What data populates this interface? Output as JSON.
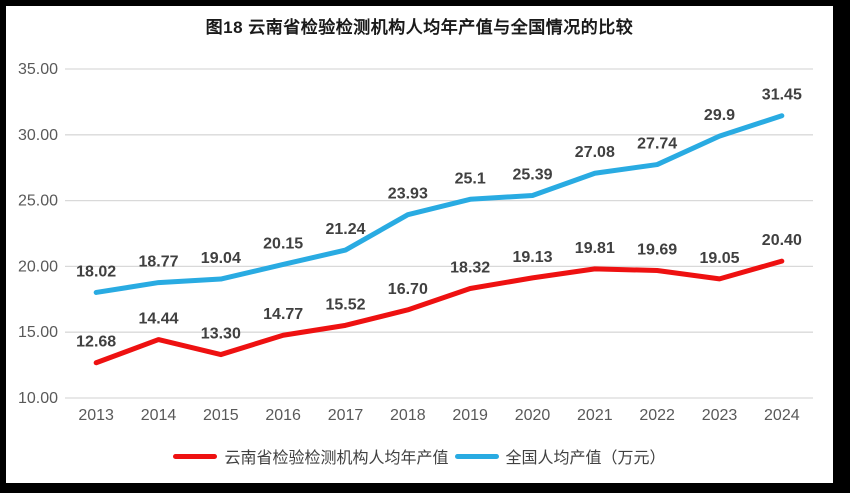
{
  "chart_data": {
    "type": "line",
    "title": "图18 云南省检验检测机构人均年产值与全国情况的比较",
    "categories": [
      "2013",
      "2014",
      "2015",
      "2016",
      "2017",
      "2018",
      "2019",
      "2020",
      "2021",
      "2022",
      "2023",
      "2024"
    ],
    "series": [
      {
        "name": "云南省检验检测机构人均年产值",
        "color": "#ee1111",
        "values": [
          12.68,
          14.44,
          13.3,
          14.77,
          15.52,
          16.7,
          18.32,
          19.13,
          19.81,
          19.69,
          19.05,
          20.4
        ],
        "labels": [
          "12.68",
          "14.44",
          "13.30",
          "14.77",
          "15.52",
          "16.70",
          "18.32",
          "19.13",
          "19.81",
          "19.69",
          "19.05",
          "20.40"
        ]
      },
      {
        "name": "全国人均产值（万元）",
        "color": "#29abe2",
        "values": [
          18.02,
          18.77,
          19.04,
          20.15,
          21.24,
          23.93,
          25.1,
          25.39,
          27.08,
          27.74,
          29.9,
          31.45
        ],
        "labels": [
          "18.02",
          "18.77",
          "19.04",
          "20.15",
          "21.24",
          "23.93",
          "25.1",
          "25.39",
          "27.08",
          "27.74",
          "29.9",
          "31.45"
        ]
      }
    ],
    "xlabel": "",
    "ylabel": "",
    "ylim": [
      10,
      35
    ],
    "yticks": {
      "values": [
        35,
        30,
        25,
        20,
        15,
        10
      ],
      "labels": [
        "35.00",
        "30.00",
        "25.00",
        "20.00",
        "15.00",
        "10.00"
      ]
    },
    "grid": "horizontal",
    "legend_position": "bottom",
    "colors": {
      "gridline": "#d9d9d9",
      "tick_text": "#595959",
      "data_label_text": "#404040",
      "frame_border": "#000000",
      "background": "#ffffff"
    }
  }
}
